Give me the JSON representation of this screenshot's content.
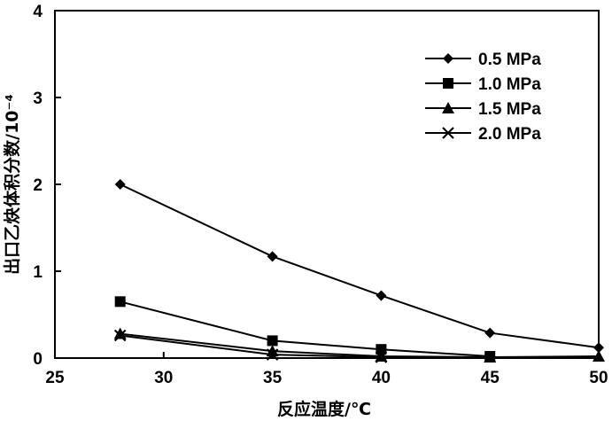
{
  "chart_data": {
    "type": "line",
    "title": "",
    "xlabel": "反应温度/℃",
    "ylabel": "出口乙炔体积分数/10⁻⁴",
    "xlim": [
      25,
      50
    ],
    "ylim": [
      0,
      4
    ],
    "x_ticks": [
      "25",
      "30",
      "35",
      "40",
      "45",
      "50"
    ],
    "y_ticks": [
      "0",
      "1",
      "2",
      "3",
      "4"
    ],
    "grid": false,
    "legend_position": "top-right",
    "series": [
      {
        "name": "0.5 MPa",
        "marker": "diamond",
        "points": [
          [
            28,
            2.0
          ],
          [
            35,
            1.17
          ],
          [
            40,
            0.72
          ],
          [
            45,
            0.29
          ],
          [
            50,
            0.12
          ]
        ]
      },
      {
        "name": "1.0 MPa",
        "marker": "square",
        "points": [
          [
            28,
            0.65
          ],
          [
            35,
            0.2
          ],
          [
            40,
            0.1
          ],
          [
            45,
            0.02
          ]
        ]
      },
      {
        "name": "1.5 MPa",
        "marker": "triangle",
        "points": [
          [
            28,
            0.28
          ],
          [
            35,
            0.08
          ],
          [
            40,
            0.02
          ],
          [
            45,
            0.01
          ],
          [
            50,
            0.02
          ]
        ]
      },
      {
        "name": "2.0 MPa",
        "marker": "x",
        "points": [
          [
            28,
            0.26
          ],
          [
            35,
            0.04
          ],
          [
            40,
            0.01
          ]
        ]
      }
    ]
  }
}
